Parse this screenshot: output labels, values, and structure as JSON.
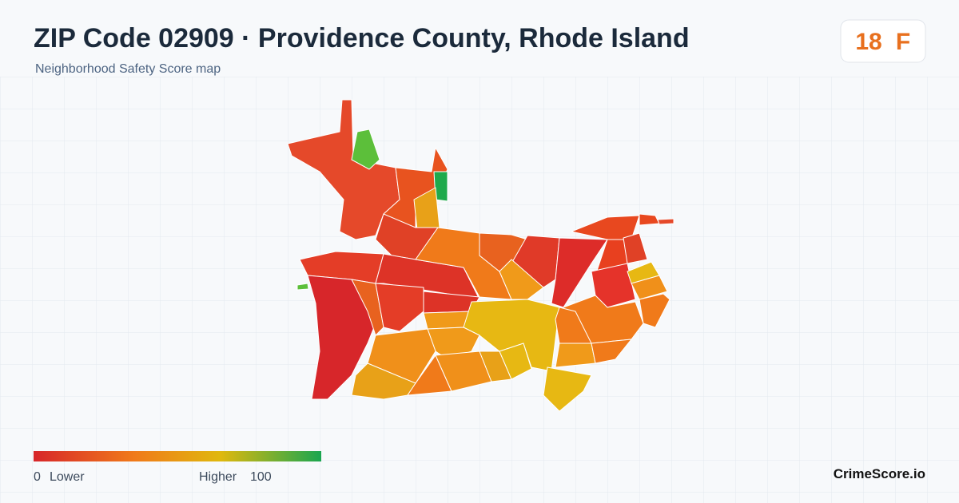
{
  "header": {
    "title": "ZIP Code 02909 · Providence County, Rhode Island",
    "subtitle": "Neighborhood Safety Score map"
  },
  "score": {
    "value": 18,
    "grade": "F"
  },
  "legend": {
    "min": 0,
    "min_label": "Lower",
    "max_label": "Higher",
    "max": 100
  },
  "footer": {
    "brand": "CrimeScore.io"
  }
}
